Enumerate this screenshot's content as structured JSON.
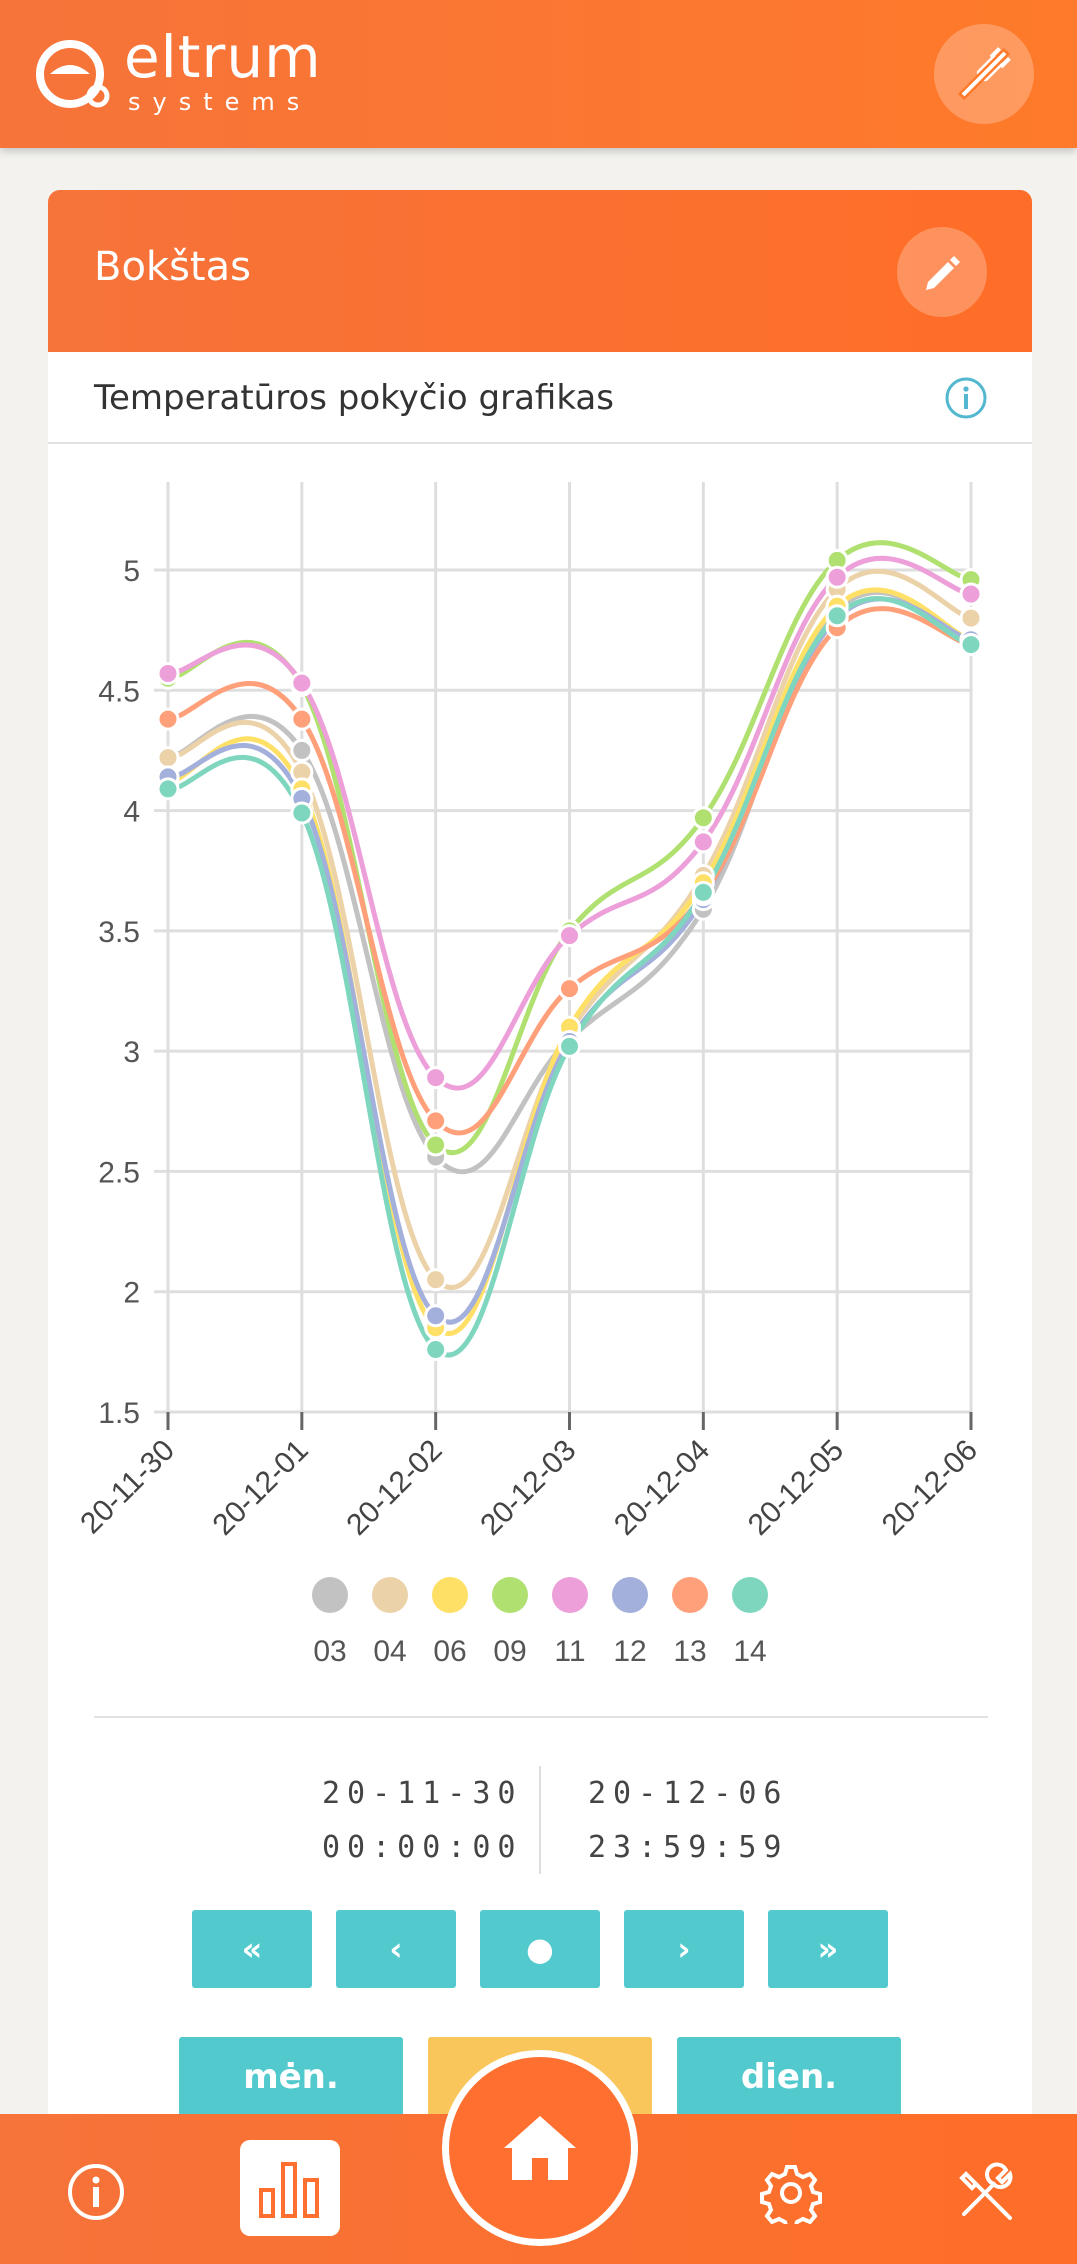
{
  "header": {
    "brand_name": "eltrum",
    "brand_sub": "systems",
    "icons": {
      "logo": "eltrum-logo",
      "disconnect": "unplug-icon"
    }
  },
  "card": {
    "title": "Bokštas",
    "edit_icon": "pencil-icon",
    "subtitle": "Temperatūros pokyčio grafikas",
    "info_icon": "info-icon"
  },
  "chart_data": {
    "type": "line",
    "title": "",
    "xlabel": "",
    "ylabel": "",
    "x": [
      "20-11-30",
      "20-12-01",
      "20-12-02",
      "20-12-03",
      "20-12-04",
      "20-12-05",
      "20-12-06"
    ],
    "ylim": [
      1.5,
      5.25
    ],
    "yticks": [
      "1.5",
      "2",
      "2.5",
      "3",
      "3.5",
      "4",
      "4.5",
      "5"
    ],
    "grid": true,
    "legend_position": "bottom",
    "series": [
      {
        "name": "03",
        "color": "#c2c2c2",
        "values": [
          4.22,
          4.25,
          2.56,
          3.05,
          3.59,
          4.83,
          4.7
        ]
      },
      {
        "name": "04",
        "color": "#ecd2a8",
        "values": [
          4.22,
          4.16,
          2.05,
          3.08,
          3.73,
          4.92,
          4.8
        ]
      },
      {
        "name": "06",
        "color": "#ffe066",
        "values": [
          4.12,
          4.09,
          1.85,
          3.1,
          3.7,
          4.85,
          4.71
        ]
      },
      {
        "name": "09",
        "color": "#b0e070",
        "values": [
          4.55,
          4.52,
          2.61,
          3.5,
          3.97,
          5.04,
          4.96
        ]
      },
      {
        "name": "11",
        "color": "#ec9fd8",
        "values": [
          4.57,
          4.53,
          2.89,
          3.48,
          3.87,
          4.97,
          4.9
        ]
      },
      {
        "name": "12",
        "color": "#a3b0dc",
        "values": [
          4.14,
          4.05,
          1.9,
          3.04,
          3.63,
          4.8,
          4.71
        ]
      },
      {
        "name": "13",
        "color": "#ffa07a",
        "values": [
          4.38,
          4.38,
          2.71,
          3.26,
          3.65,
          4.76,
          4.69
        ]
      },
      {
        "name": "14",
        "color": "#7fd6be",
        "values": [
          4.09,
          3.99,
          1.76,
          3.02,
          3.66,
          4.81,
          4.69
        ]
      }
    ]
  },
  "range": {
    "from_date": "20-11-30",
    "from_time": "00:00:00",
    "to_date": "20-12-06",
    "to_time": "23:59:59"
  },
  "nav_buttons": {
    "first": "«",
    "prev": "‹",
    "current": "●",
    "next": "›",
    "last": "»"
  },
  "period_buttons": {
    "month": "mėn.",
    "week": "",
    "day": "dien."
  },
  "colors": {
    "accent": "#ff7030",
    "teal": "#52cacd",
    "yellow": "#f9c65c"
  },
  "bottom_nav": {
    "icons": [
      "info-icon",
      "bar-chart-icon",
      "home-icon",
      "gear-icon",
      "tools-icon"
    ]
  }
}
